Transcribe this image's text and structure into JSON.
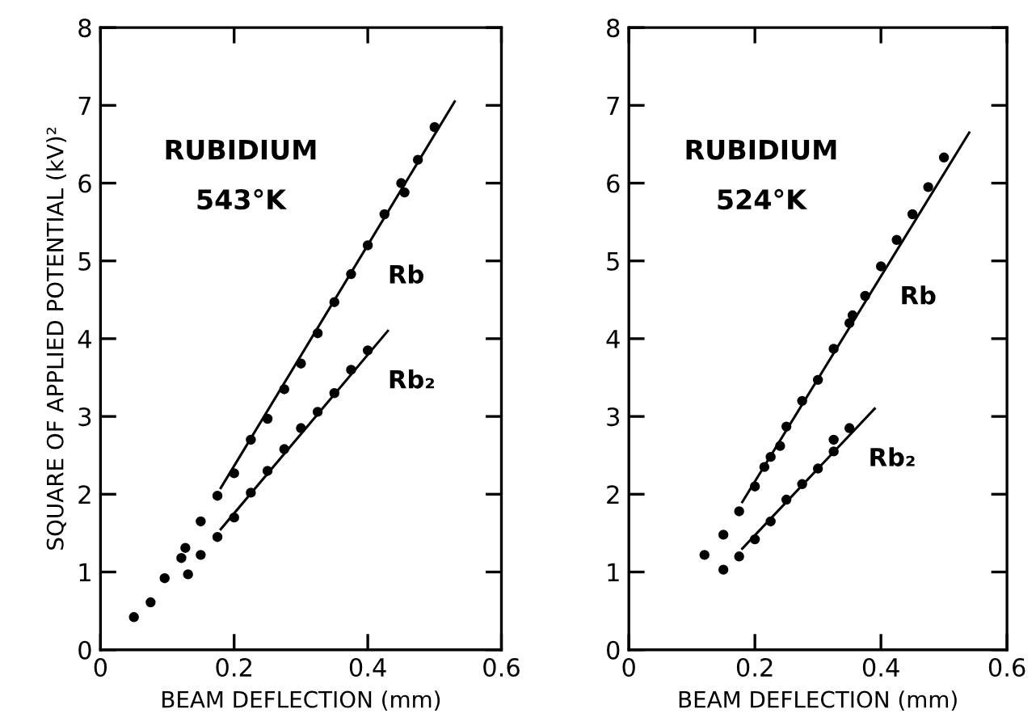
{
  "chart_data": [
    {
      "type": "scatter",
      "xlabel": "BEAM DEFLECTION (mm)",
      "ylabel": "SQUARE OF APPLIED POTENTIAL (kV)²",
      "annotations": [
        "RUBIDIUM",
        "543°K"
      ],
      "xlim": [
        0,
        0.6
      ],
      "ylim": [
        0,
        8
      ],
      "xticks": [
        0,
        0.2,
        0.4,
        0.6
      ],
      "yticks": [
        0,
        1,
        2,
        3,
        4,
        5,
        6,
        7,
        8
      ],
      "grid": false,
      "legend": false,
      "marker": "circle",
      "series": [
        {
          "name": "Rb",
          "color": "#000000",
          "x": [
            0.05,
            0.075,
            0.096,
            0.121,
            0.127,
            0.15,
            0.175,
            0.2,
            0.225,
            0.25,
            0.275,
            0.3,
            0.325,
            0.35,
            0.375,
            0.4,
            0.425,
            0.45,
            0.455,
            0.475,
            0.5
          ],
          "values": [
            0.42,
            0.61,
            0.92,
            1.18,
            1.31,
            1.65,
            1.98,
            2.27,
            2.7,
            2.97,
            3.35,
            3.68,
            4.07,
            4.47,
            4.83,
            5.2,
            5.6,
            6.0,
            5.88,
            6.3,
            6.72
          ]
        },
        {
          "name": "Rb₂",
          "color": "#000000",
          "x": [
            0.131,
            0.15,
            0.175,
            0.2,
            0.225,
            0.25,
            0.275,
            0.3,
            0.325,
            0.35,
            0.375,
            0.4
          ],
          "values": [
            0.97,
            1.22,
            1.45,
            1.7,
            2.02,
            2.3,
            2.58,
            2.85,
            3.06,
            3.3,
            3.6,
            3.85
          ]
        },
        {
          "type": "line",
          "color": "#000000",
          "marker": "none",
          "line_style": "solid",
          "x": [
            0.18,
            0.53
          ],
          "values": [
            2.08,
            7.05
          ]
        },
        {
          "type": "line",
          "color": "#000000",
          "marker": "none",
          "line_style": "solid",
          "x": [
            0.18,
            0.43
          ],
          "values": [
            1.55,
            4.1
          ]
        }
      ]
    },
    {
      "type": "scatter",
      "xlabel": "BEAM DEFLECTION (mm)",
      "annotations": [
        "RUBIDIUM",
        "524°K"
      ],
      "xlim": [
        0,
        0.6
      ],
      "ylim": [
        0,
        8
      ],
      "xticks": [
        0,
        0.2,
        0.4,
        0.6
      ],
      "yticks": [
        0,
        1,
        2,
        3,
        4,
        5,
        6,
        7,
        8
      ],
      "grid": false,
      "legend": false,
      "marker": "circle",
      "series": [
        {
          "name": "Rb",
          "color": "#000000",
          "x": [
            0.12,
            0.15,
            0.175,
            0.2,
            0.215,
            0.225,
            0.24,
            0.25,
            0.275,
            0.3,
            0.325,
            0.35,
            0.355,
            0.375,
            0.4,
            0.425,
            0.45,
            0.475,
            0.5
          ],
          "values": [
            1.22,
            1.48,
            1.78,
            2.1,
            2.35,
            2.48,
            2.62,
            2.87,
            3.2,
            3.47,
            3.87,
            4.2,
            4.3,
            4.55,
            4.93,
            5.27,
            5.6,
            5.95,
            6.33
          ]
        },
        {
          "name": "Rb₂",
          "color": "#000000",
          "x": [
            0.15,
            0.175,
            0.2,
            0.225,
            0.25,
            0.275,
            0.3,
            0.325,
            0.325,
            0.35
          ],
          "values": [
            1.03,
            1.2,
            1.42,
            1.65,
            1.93,
            2.13,
            2.33,
            2.55,
            2.7,
            2.85
          ]
        },
        {
          "type": "line",
          "color": "#000000",
          "marker": "none",
          "line_style": "solid",
          "x": [
            0.18,
            0.54
          ],
          "values": [
            1.9,
            6.65
          ]
        },
        {
          "type": "line",
          "color": "#000000",
          "marker": "none",
          "line_style": "solid",
          "x": [
            0.18,
            0.39
          ],
          "values": [
            1.3,
            3.1
          ]
        }
      ]
    }
  ]
}
